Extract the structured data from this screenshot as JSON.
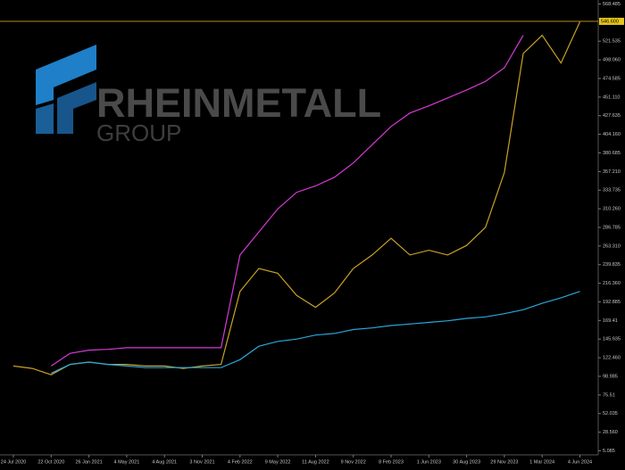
{
  "watermark": {
    "name": "RHEINMETALL",
    "subname": "GROUP"
  },
  "chart_data": {
    "type": "line",
    "categories": [
      "24 Jul 2020",
      null,
      "22 Oct 2020",
      null,
      "26 Jan 2021",
      null,
      "4 May 2021",
      null,
      "4 Aug 2021",
      null,
      "3 Nov 2021",
      null,
      "4 Feb 2022",
      null,
      "9 May 2022",
      null,
      "11 Aug 2022",
      null,
      "9 Nov 2022",
      null,
      "8 Feb 2023",
      null,
      "1 Jun 2023",
      null,
      "30 Aug 2023",
      null,
      "29 Nov 2023",
      null,
      "1 Mar 2024",
      null,
      "4 Jun 2024"
    ],
    "series": [
      {
        "color": "#c9a227",
        "values": [
          112,
          109,
          101,
          114,
          117,
          114,
          114,
          112,
          112,
          109,
          112,
          114,
          206,
          235,
          229,
          201,
          186,
          204,
          235,
          252,
          273,
          252,
          258,
          252,
          264,
          287,
          356,
          506,
          529,
          494,
          546
        ]
      },
      {
        "color": "#d63ad6",
        "values": [
          null,
          null,
          112,
          128,
          132,
          133,
          135,
          135,
          135,
          135,
          135,
          135,
          252,
          281,
          310,
          331,
          339,
          350,
          368,
          391,
          414,
          431,
          440,
          450,
          460,
          471,
          488,
          529,
          null,
          null,
          null
        ]
      },
      {
        "color": "#2aa6dc",
        "values": [
          null,
          null,
          103,
          114,
          117,
          114,
          112,
          110,
          110,
          110,
          110,
          110,
          120,
          137,
          143,
          146,
          151,
          153,
          158,
          160,
          163,
          165,
          167,
          169,
          172,
          174,
          178,
          183,
          191,
          198,
          206
        ]
      }
    ],
    "ylim": [
      0,
      573.5
    ],
    "yticks": [
      5.085,
      {
        "value": 28.56,
        "label": "28.560"
      },
      52.035,
      75.51,
      98.985,
      {
        "value": 122.46,
        "label": "122.460"
      },
      145.935,
      169.41,
      192.885,
      {
        "value": 216.36,
        "label": "216.360"
      },
      239.835,
      {
        "value": 263.31,
        "label": "263.310"
      },
      286.785,
      {
        "value": 310.26,
        "label": "310.260"
      },
      333.735,
      {
        "value": 357.21,
        "label": "357.210"
      },
      380.685,
      {
        "value": 404.16,
        "label": "404.160"
      },
      427.635,
      {
        "value": 451.11,
        "label": "451.110"
      },
      474.585,
      {
        "value": 498.06,
        "label": "498.060"
      },
      521.535,
      568.485
    ],
    "current_price": {
      "value": 546.6,
      "label": "546.600"
    },
    "grid": false
  }
}
